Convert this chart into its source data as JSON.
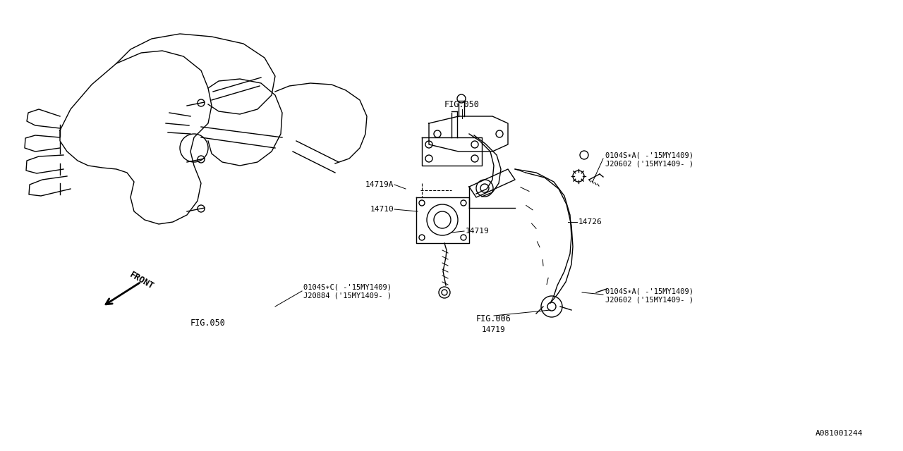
{
  "bg_color": "#ffffff",
  "line_color": "#000000",
  "fig_width": 12.8,
  "fig_height": 6.4,
  "dpi": 100,
  "title": "",
  "watermark": "A081001244",
  "labels": {
    "fig050_top": "FIG.050",
    "fig050_bottom": "FIG.050",
    "fig006": "FIG.006",
    "front": "FRONT",
    "part_14710": "14710",
    "part_14719": "14719",
    "part_14719A": "14719A",
    "part_14719_bottom": "14719",
    "part_14726": "14726",
    "part_0104SA_top1": "0104S∗A( -'15MY1409)",
    "part_0104SA_top2": "J20602 ('15MY1409- )",
    "part_0104SC_1": "0104S∗C( -'15MY1409)",
    "part_0104SC_2": "J20884 ('15MY1409- )",
    "part_0104SA_bot1": "0104S∗A( -'15MY1409)",
    "part_0104SA_bot2": "J20602 ('15MY1409- )"
  }
}
